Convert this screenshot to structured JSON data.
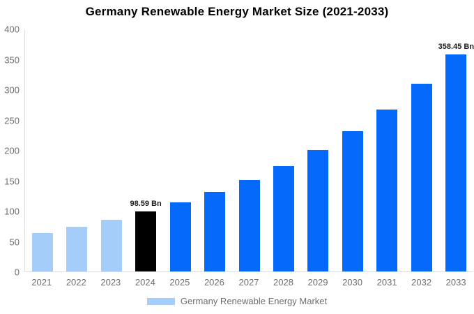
{
  "title": "Germany Renewable Energy Market Size (2021-2033)",
  "legend": {
    "label": "Germany Renewable Energy Market",
    "swatch_color": "#a4cdfa"
  },
  "colors": {
    "historical": "#a4cdfa",
    "base_year": "#000000",
    "forecast": "#0569fb",
    "axis_line": "#dedede",
    "tick_text": "#6e6e6e",
    "title_text": "#000000",
    "annotation_text": "#1a1a1a",
    "background": "#ffffff"
  },
  "chart_data": {
    "type": "bar",
    "title": "Germany Renewable Energy Market Size (2021-2033)",
    "xlabel": "",
    "ylabel": "",
    "categories": [
      "2021",
      "2022",
      "2023",
      "2024",
      "2025",
      "2026",
      "2027",
      "2028",
      "2029",
      "2030",
      "2031",
      "2032",
      "2033"
    ],
    "series": [
      {
        "name": "Germany Renewable Energy Market",
        "values": [
          63,
          74,
          85,
          98.59,
          114,
          131,
          151,
          174,
          201,
          232,
          268,
          310,
          358.45
        ]
      }
    ],
    "bar_roles": [
      "historical",
      "historical",
      "historical",
      "base_year",
      "forecast",
      "forecast",
      "forecast",
      "forecast",
      "forecast",
      "forecast",
      "forecast",
      "forecast",
      "forecast"
    ],
    "annotations": [
      {
        "category": "2024",
        "text": "98.59 Bn"
      },
      {
        "category": "2033",
        "text": "358.45 Bn"
      }
    ],
    "unit": "Bn",
    "ylim": [
      0,
      400
    ],
    "y_ticks": [
      0,
      50,
      100,
      150,
      200,
      250,
      300,
      350,
      400
    ],
    "grid": false,
    "legend_position": "bottom"
  }
}
